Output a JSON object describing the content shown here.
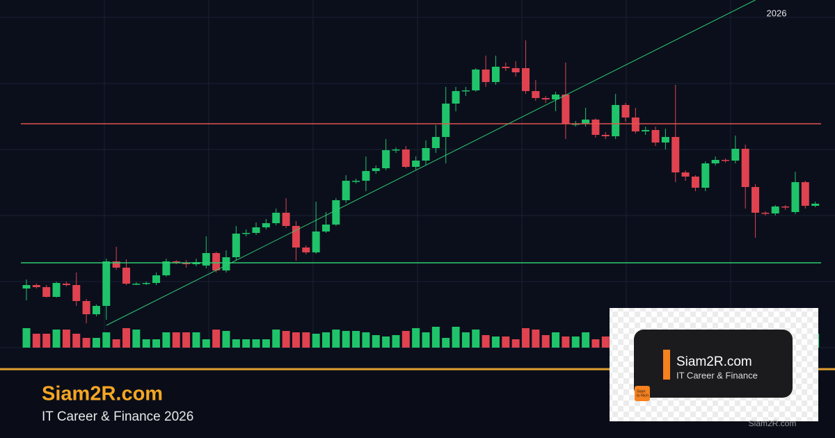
{
  "year_label": "2026",
  "chart_data": {
    "type": "candlestick",
    "open": [
      85,
      90,
      87,
      73,
      92,
      90,
      67,
      48,
      60,
      124,
      115,
      92,
      92,
      93,
      104,
      124,
      122,
      120,
      118,
      136,
      111,
      130,
      164,
      165,
      173,
      179,
      194,
      175,
      144,
      137,
      167,
      177,
      212,
      240,
      240,
      254,
      258,
      284,
      285,
      260,
      269,
      287,
      303,
      351,
      369,
      370,
      400,
      382,
      404,
      402,
      402,
      369,
      359,
      357,
      364,
      322,
      322,
      328,
      306,
      304,
      349,
      331,
      311,
      313,
      295,
      303,
      252,
      246,
      230,
      265,
      270,
      269,
      286,
      231,
      194,
      193,
      203,
      195,
      238,
      204
    ],
    "high": [
      98,
      92,
      90,
      95,
      95,
      108,
      70,
      62,
      128,
      145,
      127,
      94,
      95,
      108,
      128,
      126,
      126,
      128,
      160,
      138,
      140,
      175,
      170,
      180,
      185,
      200,
      215,
      182,
      147,
      210,
      195,
      215,
      248,
      243,
      275,
      262,
      300,
      288,
      290,
      275,
      298,
      320,
      375,
      375,
      375,
      402,
      420,
      420,
      410,
      412,
      442,
      385,
      362,
      368,
      410,
      326,
      345,
      330,
      310,
      365,
      352,
      345,
      318,
      318,
      315,
      378,
      255,
      248,
      268,
      275,
      272,
      305,
      292,
      235,
      196,
      205,
      205,
      253,
      240,
      210
    ],
    "low": [
      68,
      85,
      72,
      72,
      88,
      60,
      35,
      45,
      40,
      112,
      90,
      90,
      90,
      90,
      102,
      120,
      115,
      117,
      114,
      108,
      108,
      125,
      160,
      162,
      170,
      176,
      172,
      125,
      134,
      135,
      165,
      175,
      208,
      236,
      225,
      250,
      255,
      280,
      258,
      256,
      262,
      280,
      265,
      340,
      362,
      368,
      375,
      378,
      398,
      390,
      365,
      355,
      352,
      340,
      300,
      318,
      318,
      302,
      300,
      300,
      325,
      308,
      306,
      290,
      285,
      238,
      240,
      225,
      225,
      262,
      266,
      265,
      200,
      158,
      190,
      190,
      198,
      192,
      200,
      202
    ],
    "close": [
      90,
      87,
      73,
      93,
      90,
      67,
      48,
      60,
      124,
      115,
      92,
      92,
      93,
      104,
      124,
      122,
      120,
      123,
      136,
      111,
      130,
      164,
      165,
      173,
      179,
      194,
      175,
      144,
      137,
      167,
      177,
      212,
      240,
      240,
      254,
      258,
      284,
      285,
      260,
      269,
      287,
      303,
      351,
      369,
      370,
      400,
      382,
      404,
      402,
      396,
      369,
      359,
      357,
      364,
      322,
      322,
      328,
      306,
      304,
      349,
      331,
      311,
      313,
      295,
      303,
      252,
      246,
      230,
      265,
      270,
      269,
      286,
      231,
      194,
      193,
      203,
      202,
      238,
      204,
      207
    ],
    "volume": [
      28,
      20,
      20,
      26,
      26,
      20,
      14,
      14,
      22,
      12,
      28,
      26,
      12,
      12,
      22,
      22,
      22,
      22,
      12,
      26,
      24,
      12,
      12,
      12,
      12,
      26,
      24,
      22,
      22,
      20,
      22,
      26,
      24,
      24,
      22,
      18,
      16,
      18,
      24,
      28,
      22,
      30,
      14,
      30,
      22,
      26,
      18,
      16,
      16,
      12,
      28,
      26,
      18,
      22,
      16,
      16,
      22,
      12,
      16,
      16,
      20,
      18,
      22,
      14,
      20,
      24,
      18,
      16,
      22,
      20,
      18,
      24,
      20,
      16,
      22,
      18,
      20,
      24,
      18,
      20
    ],
    "up_color": "#1fc46a",
    "down_color": "#e0424f",
    "ylim": [
      0,
      500
    ],
    "volume_ylim": [
      0,
      100
    ],
    "resistance": {
      "value": 322,
      "color": "#e0554f"
    },
    "support": {
      "value": 122,
      "color": "#2ecc71"
    },
    "trendline": {
      "from": [
        8,
        32
      ],
      "to": [
        73,
        500
      ],
      "color": "#2ecc71"
    }
  },
  "footer": {
    "title": "Siam2R.com",
    "subtitle": "IT Career & Finance 2026"
  },
  "logo_card": {
    "title": "Siam2R.com",
    "subtitle": "IT Career & Finance",
    "icon_text": [
      "Siam",
      "to Rich"
    ]
  },
  "watermark": "Siam2R.com"
}
